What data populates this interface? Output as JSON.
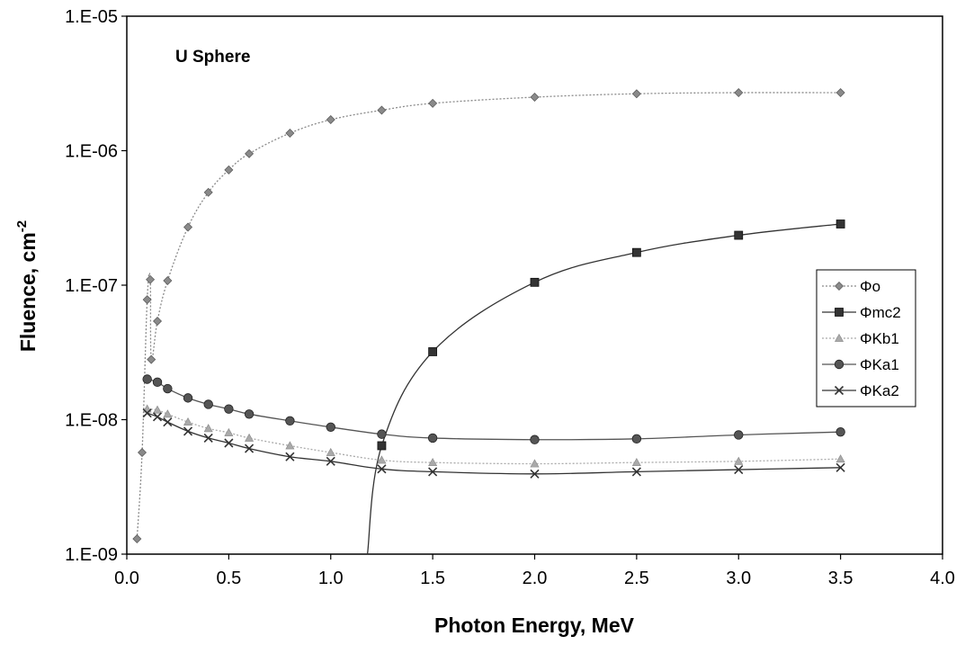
{
  "chart_data": {
    "type": "line",
    "annotation": "U Sphere",
    "xlabel": "Photon Energy, MeV",
    "ylabel": "Fluence, cm",
    "ylabel_sup": "-2",
    "xlim": [
      0,
      4
    ],
    "ylim": [
      1e-09,
      1e-05
    ],
    "yscale": "log",
    "x_ticks": [
      "0.0",
      "0.5",
      "1.0",
      "1.5",
      "2.0",
      "2.5",
      "3.0",
      "3.5",
      "4.0"
    ],
    "y_ticks": [
      "1.E-09",
      "1.E-08",
      "1.E-07",
      "1.E-06",
      "1.E-05"
    ],
    "grid": false,
    "legend_position": "right",
    "series": [
      {
        "name": "Φo",
        "marker": "diamond",
        "color": "#8a8a8a",
        "dash": "2,2",
        "points": [
          [
            0.05,
            1.3e-09
          ],
          [
            0.075,
            5.7e-09
          ],
          [
            0.1,
            7.8e-08
          ],
          [
            0.115,
            1.1e-07
          ],
          [
            0.12,
            2.8e-08
          ],
          [
            0.15,
            5.4e-08
          ],
          [
            0.2,
            1.08e-07
          ],
          [
            0.3,
            2.7e-07
          ],
          [
            0.4,
            4.9e-07
          ],
          [
            0.5,
            7.2e-07
          ],
          [
            0.6,
            9.5e-07
          ],
          [
            0.8,
            1.35e-06
          ],
          [
            1.0,
            1.7e-06
          ],
          [
            1.25,
            2e-06
          ],
          [
            1.5,
            2.25e-06
          ],
          [
            2.0,
            2.5e-06
          ],
          [
            2.5,
            2.65e-06
          ],
          [
            3.0,
            2.7e-06
          ],
          [
            3.5,
            2.7e-06
          ]
        ]
      },
      {
        "name": "Φmc2",
        "marker": "square",
        "color": "#333333",
        "dash": "",
        "line_only_start": [
          1.18,
          1e-09
        ],
        "points": [
          [
            1.25,
            6.4e-09
          ],
          [
            1.5,
            3.2e-08
          ],
          [
            2.0,
            1.05e-07
          ],
          [
            2.5,
            1.75e-07
          ],
          [
            3.0,
            2.35e-07
          ],
          [
            3.5,
            2.85e-07
          ]
        ]
      },
      {
        "name": "ΦKb1",
        "marker": "triangle",
        "color": "#aaaaaa",
        "dash": "2,2",
        "points": [
          [
            0.1,
            1.2e-08
          ],
          [
            0.15,
            1.18e-08
          ],
          [
            0.2,
            1.1e-08
          ],
          [
            0.3,
            9.6e-09
          ],
          [
            0.4,
            8.6e-09
          ],
          [
            0.5,
            8e-09
          ],
          [
            0.6,
            7.3e-09
          ],
          [
            0.8,
            6.4e-09
          ],
          [
            1.0,
            5.7e-09
          ],
          [
            1.25,
            5e-09
          ],
          [
            1.5,
            4.8e-09
          ],
          [
            2.0,
            4.7e-09
          ],
          [
            2.5,
            4.8e-09
          ],
          [
            3.0,
            4.9e-09
          ],
          [
            3.5,
            5.1e-09
          ]
        ]
      },
      {
        "name": "ΦKa1",
        "marker": "circle",
        "color": "#555555",
        "dash": "",
        "points": [
          [
            0.1,
            2e-08
          ],
          [
            0.15,
            1.9e-08
          ],
          [
            0.2,
            1.7e-08
          ],
          [
            0.3,
            1.45e-08
          ],
          [
            0.4,
            1.3e-08
          ],
          [
            0.5,
            1.2e-08
          ],
          [
            0.6,
            1.1e-08
          ],
          [
            0.8,
            9.8e-09
          ],
          [
            1.0,
            8.8e-09
          ],
          [
            1.25,
            7.8e-09
          ],
          [
            1.5,
            7.3e-09
          ],
          [
            2.0,
            7.1e-09
          ],
          [
            2.5,
            7.2e-09
          ],
          [
            3.0,
            7.7e-09
          ],
          [
            3.5,
            8.1e-09
          ]
        ]
      },
      {
        "name": "ΦKa2",
        "marker": "x",
        "color": "#333333",
        "dash": "",
        "points": [
          [
            0.1,
            1.12e-08
          ],
          [
            0.15,
            1.05e-08
          ],
          [
            0.2,
            9.6e-09
          ],
          [
            0.3,
            8.2e-09
          ],
          [
            0.4,
            7.3e-09
          ],
          [
            0.5,
            6.7e-09
          ],
          [
            0.6,
            6.1e-09
          ],
          [
            0.8,
            5.3e-09
          ],
          [
            1.0,
            4.9e-09
          ],
          [
            1.25,
            4.3e-09
          ],
          [
            1.5,
            4.1e-09
          ],
          [
            2.0,
            3.95e-09
          ],
          [
            2.5,
            4.1e-09
          ],
          [
            3.0,
            4.25e-09
          ],
          [
            3.5,
            4.4e-09
          ]
        ]
      }
    ]
  }
}
